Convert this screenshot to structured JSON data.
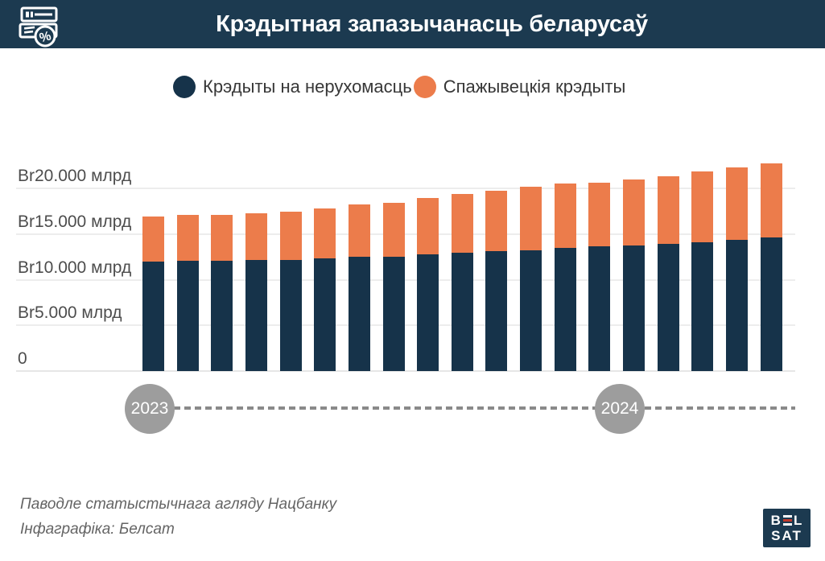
{
  "header": {
    "title": "Крэдытная запазычанасць беларусаў",
    "icon": "banknotes-percent-icon"
  },
  "legend": [
    {
      "label": "Крэдыты на нерухомасць",
      "color": "#16334a"
    },
    {
      "label": "Спажывецкія крэдыты",
      "color": "#ec7c4b"
    }
  ],
  "chart_data": {
    "type": "bar",
    "stacked": true,
    "title": "Крэдытная запазычанасць беларусаў",
    "unit_label": "млрд",
    "bar_count": 19,
    "series": [
      {
        "name": "Крэдыты на нерухомасць",
        "color": "#16334a",
        "values": [
          12000,
          12050,
          12050,
          12150,
          12150,
          12350,
          12500,
          12550,
          12800,
          12950,
          13150,
          13250,
          13500,
          13650,
          13750,
          13900,
          14100,
          14350,
          14600
        ]
      },
      {
        "name": "Спажывецкія крэдыты",
        "color": "#ec7c4b",
        "values": [
          4950,
          5050,
          5050,
          5150,
          5300,
          5450,
          5700,
          5900,
          6150,
          6450,
          6600,
          6900,
          7000,
          7000,
          7250,
          7400,
          7750,
          7950,
          8100
        ]
      }
    ],
    "y_ticks": [
      {
        "label": "Br20.000 млрд",
        "value": 20000
      },
      {
        "label": "Br15.000 млрд",
        "value": 15000
      },
      {
        "label": "Br10.000 млрд",
        "value": 10000
      },
      {
        "label": "Br5.000 млрд",
        "value": 5000
      },
      {
        "label": "0",
        "value": 0
      }
    ],
    "ylim": [
      0,
      20300
    ],
    "grid": true,
    "legend_position": "top",
    "x_axis": {
      "style": "dashed-timeline",
      "markers": [
        {
          "label": "2023",
          "at_bar": 1
        },
        {
          "label": "2024",
          "at_bar": 15
        }
      ]
    }
  },
  "footer": {
    "line1": "Паводле статыстычнага агляду Нацбанку",
    "line2": "Інфаграфіка: Белсат"
  },
  "logo": {
    "letter_b": "B",
    "letter_l": "L",
    "line2": "SAT",
    "accent_color": "#c0392b"
  }
}
